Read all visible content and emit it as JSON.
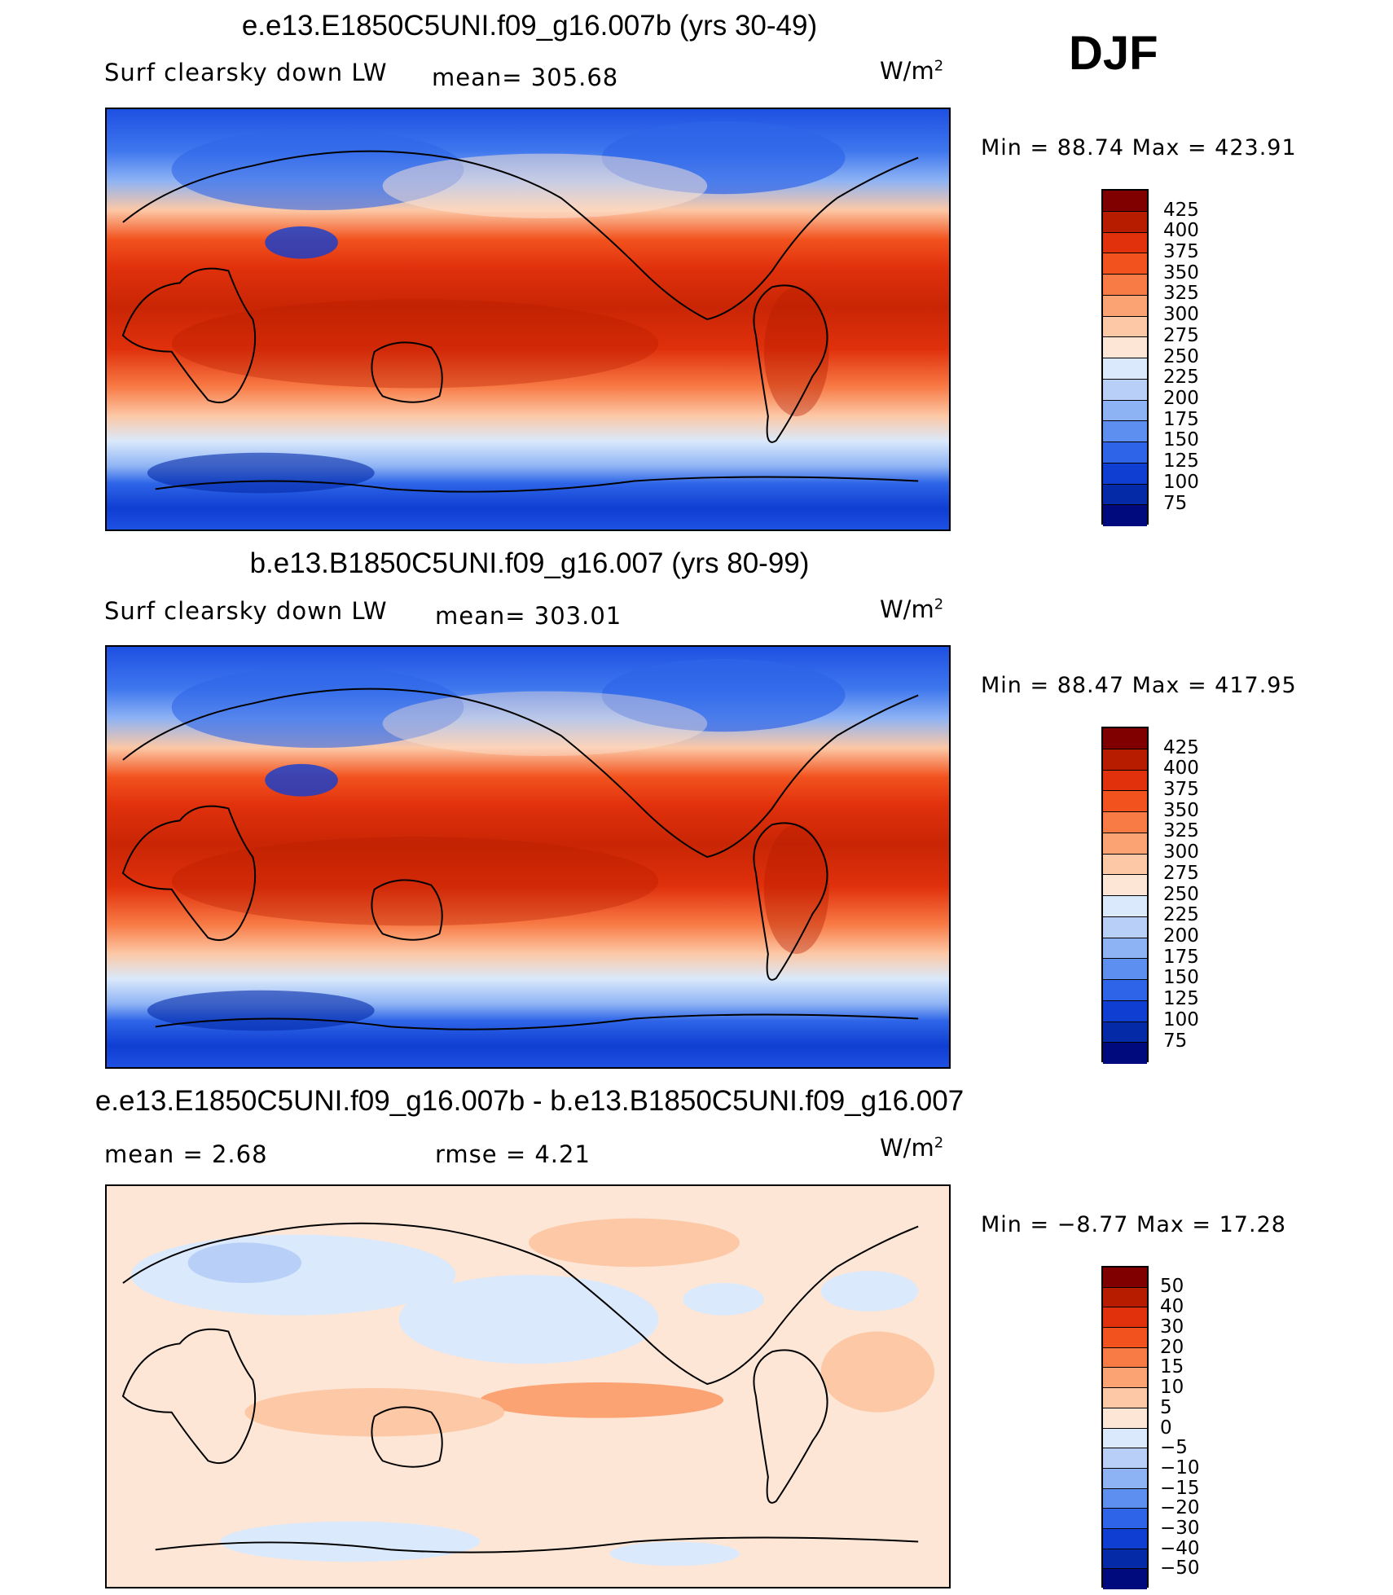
{
  "season": "DJF",
  "panels": [
    {
      "title": "e.e13.E1850C5UNI.f09_g16.007b (yrs 30-49)",
      "variable": "Surf clearsky down LW",
      "stat1": "mean= 305.68",
      "stat2": "",
      "units_base": "W/m",
      "units_exp": "2",
      "minmax": "Min =   88.74 Max = 423.91",
      "colorbar_levels": [
        "425",
        "400",
        "375",
        "350",
        "325",
        "300",
        "275",
        "250",
        "225",
        "200",
        "175",
        "150",
        "125",
        "100",
        "75"
      ],
      "colorbar_colors": [
        "#800000",
        "#b71c00",
        "#e0300c",
        "#f2521e",
        "#f87a45",
        "#fba373",
        "#fcc8a6",
        "#fde6d6",
        "#dae9fb",
        "#b8d0f8",
        "#8eb3f4",
        "#5d8ff0",
        "#2e65e8",
        "#0f3ed2",
        "#042aa8",
        "#000a7c"
      ]
    },
    {
      "title": "b.e13.B1850C5UNI.f09_g16.007 (yrs 80-99)",
      "variable": "Surf clearsky down LW",
      "stat1": "mean= 303.01",
      "stat2": "",
      "units_base": "W/m",
      "units_exp": "2",
      "minmax": "Min =   88.47 Max = 417.95",
      "colorbar_levels": [
        "425",
        "400",
        "375",
        "350",
        "325",
        "300",
        "275",
        "250",
        "225",
        "200",
        "175",
        "150",
        "125",
        "100",
        "75"
      ],
      "colorbar_colors": [
        "#800000",
        "#b71c00",
        "#e0300c",
        "#f2521e",
        "#f87a45",
        "#fba373",
        "#fcc8a6",
        "#fde6d6",
        "#dae9fb",
        "#b8d0f8",
        "#8eb3f4",
        "#5d8ff0",
        "#2e65e8",
        "#0f3ed2",
        "#042aa8",
        "#000a7c"
      ]
    },
    {
      "title": "e.e13.E1850C5UNI.f09_g16.007b - b.e13.B1850C5UNI.f09_g16.007",
      "variable": "",
      "stat1": "mean =     2.68",
      "stat2": "rmse =     4.21",
      "units_base": "W/m",
      "units_exp": "2",
      "minmax": "Min =  −8.77 Max =   17.28",
      "colorbar_levels": [
        "50",
        "40",
        "30",
        "20",
        "15",
        "10",
        "5",
        "0",
        "−5",
        "−10",
        "−15",
        "−20",
        "−30",
        "−40",
        "−50"
      ],
      "colorbar_colors": [
        "#800000",
        "#b71c00",
        "#e0300c",
        "#f2521e",
        "#f87a45",
        "#fba373",
        "#fcc8a6",
        "#fde6d6",
        "#dae9fb",
        "#b8d0f8",
        "#8eb3f4",
        "#5d8ff0",
        "#2e65e8",
        "#0f3ed2",
        "#042aa8",
        "#000a7c"
      ]
    }
  ]
}
